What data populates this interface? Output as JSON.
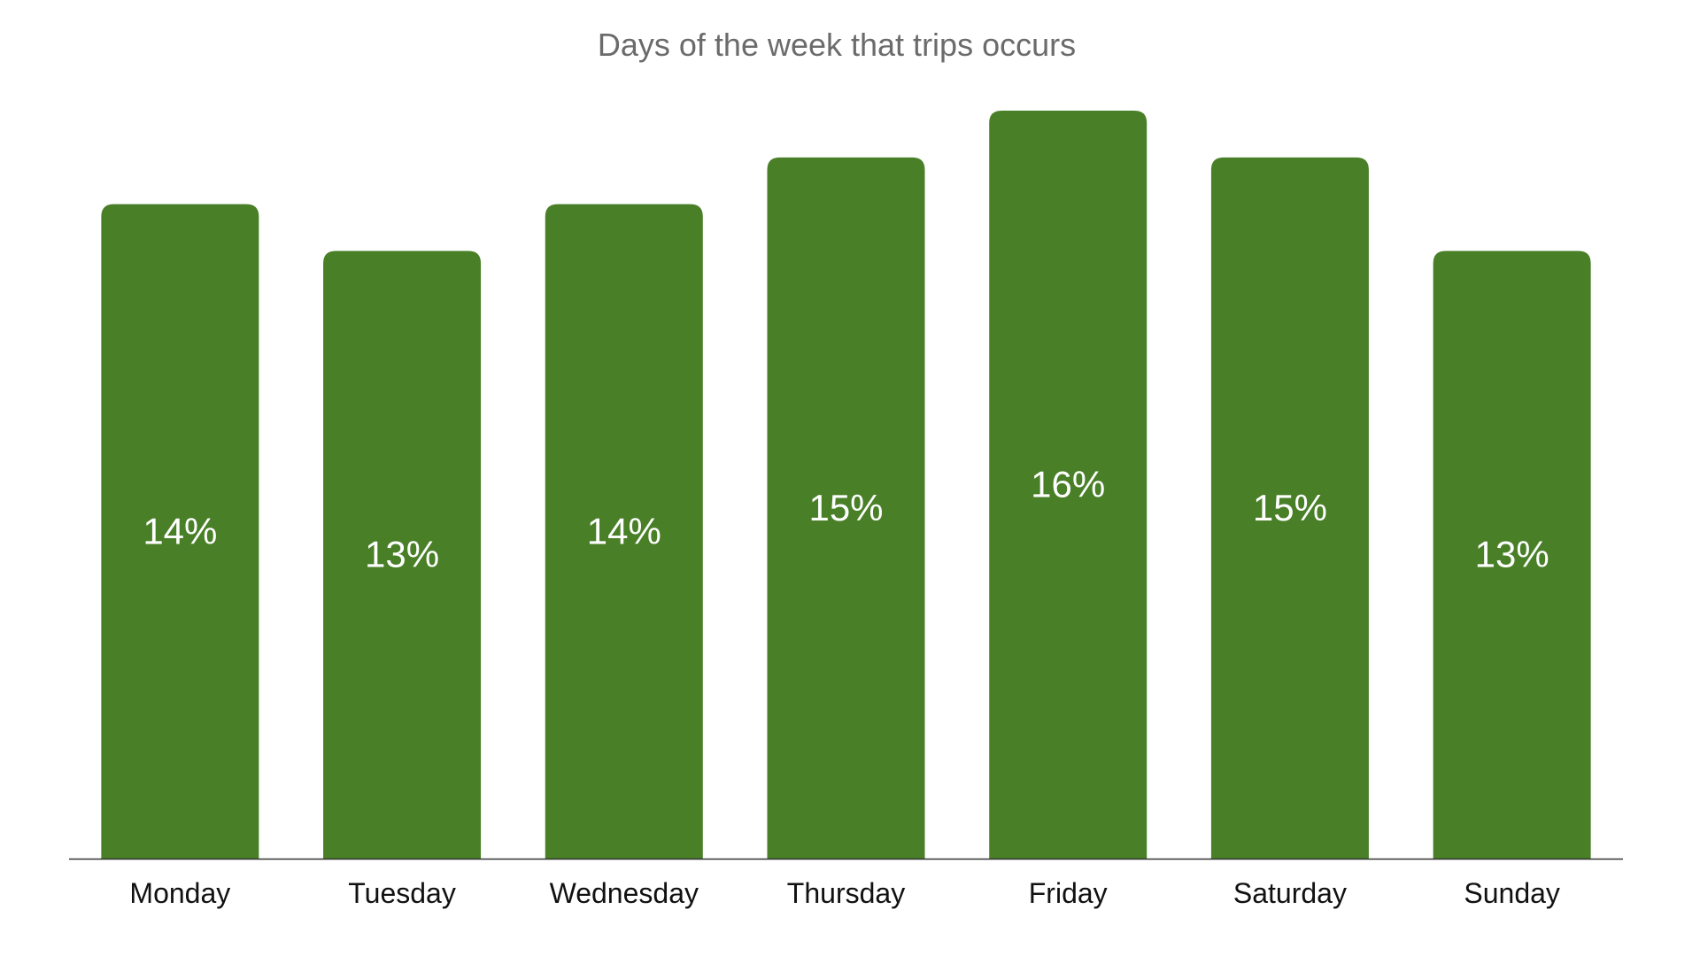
{
  "chart_data": {
    "type": "bar",
    "title": "Days of the week that trips occurs",
    "xlabel": "",
    "ylabel": "",
    "categories": [
      "Monday",
      "Tuesday",
      "Wednesday",
      "Thursday",
      "Friday",
      "Saturday",
      "Sunday"
    ],
    "values": [
      14,
      13,
      14,
      15,
      16,
      15,
      13
    ],
    "value_labels": [
      "14%",
      "13%",
      "14%",
      "15%",
      "16%",
      "15%",
      "13%"
    ],
    "ylim": [
      0,
      16
    ],
    "grid": false,
    "legend": "none",
    "colors": {
      "bar": "#487f27",
      "bar_label": "#ffffff",
      "axis_line": "#333333",
      "category_label": "#111111",
      "title": "#6b6b6b"
    }
  }
}
